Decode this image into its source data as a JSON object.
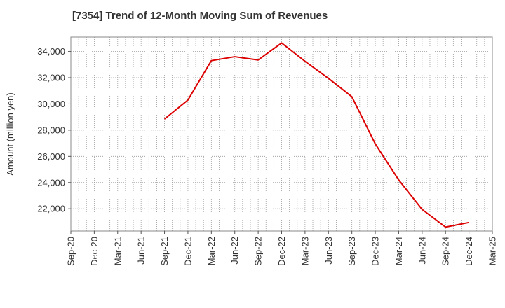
{
  "chart_data": {
    "type": "line",
    "title": "[7354]  Trend of 12-Month Moving Sum of Revenues",
    "xlabel": "",
    "ylabel": "Amount (million yen)",
    "x_ticks": [
      "Sep-20",
      "Dec-20",
      "Mar-21",
      "Jun-21",
      "Sep-21",
      "Dec-21",
      "Mar-22",
      "Jun-22",
      "Sep-22",
      "Dec-22",
      "Mar-23",
      "Jun-23",
      "Sep-23",
      "Dec-23",
      "Mar-24",
      "Jun-24",
      "Sep-24",
      "Dec-24",
      "Mar-25"
    ],
    "y_ticks": [
      22000,
      24000,
      26000,
      28000,
      30000,
      32000,
      34000
    ],
    "y_tick_labels": [
      "22,000",
      "24,000",
      "26,000",
      "28,000",
      "30,000",
      "32,000",
      "34,000"
    ],
    "ylim": [
      20300,
      35100
    ],
    "grid": true,
    "series": [
      {
        "name": "",
        "color": "#dd0000",
        "x": [
          "Sep-21",
          "Dec-21",
          "Mar-22",
          "Jun-22",
          "Sep-22",
          "Dec-22",
          "Mar-23",
          "Jun-23",
          "Sep-23",
          "Dec-23",
          "Mar-24",
          "Jun-24",
          "Sep-24",
          "Dec-24"
        ],
        "values": [
          28850,
          30300,
          33300,
          33600,
          33350,
          34650,
          33250,
          31950,
          30550,
          26950,
          24200,
          21950,
          20600,
          20950
        ]
      }
    ]
  }
}
